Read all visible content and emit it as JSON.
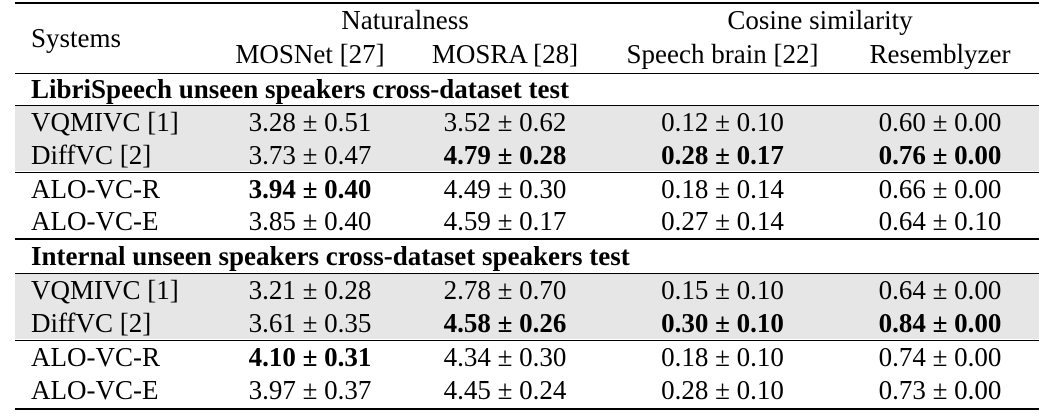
{
  "header": {
    "systems": "Systems",
    "group_naturalness": "Naturalness",
    "group_cosine": "Cosine similarity",
    "col_mosnet": "MOSNet [27]",
    "col_mosra": "MOSRA [28]",
    "col_speechbrain": "Speech brain [22]",
    "col_resemblyzer": "Resemblyzer"
  },
  "sections": [
    {
      "title": "LibriSpeech unseen speakers cross-dataset test",
      "rows": [
        {
          "system": "VQMIVC [1]",
          "values": [
            "3.28 ± 0.51",
            "3.52 ± 0.62",
            "0.12 ± 0.10",
            "0.60 ± 0.00"
          ],
          "bold": [
            false,
            false,
            false,
            false
          ],
          "shaded": true
        },
        {
          "system": "DiffVC [2]",
          "values": [
            "3.73 ± 0.47",
            "4.79 ± 0.28",
            "0.28 ± 0.17",
            "0.76 ± 0.00"
          ],
          "bold": [
            false,
            true,
            true,
            true
          ],
          "shaded": true
        },
        {
          "system": "ALO-VC-R",
          "values": [
            "3.94 ± 0.40",
            "4.49 ± 0.30",
            "0.18 ± 0.14",
            "0.66 ± 0.00"
          ],
          "bold": [
            true,
            false,
            false,
            false
          ],
          "shaded": false
        },
        {
          "system": "ALO-VC-E",
          "values": [
            "3.85 ± 0.40",
            "4.59 ± 0.17",
            "0.27 ± 0.14",
            "0.64 ± 0.10"
          ],
          "bold": [
            false,
            false,
            false,
            false
          ],
          "shaded": false
        }
      ]
    },
    {
      "title": "Internal unseen speakers cross-dataset speakers test",
      "rows": [
        {
          "system": "VQMIVC [1]",
          "values": [
            "3.21 ± 0.28",
            "2.78 ± 0.70",
            "0.15 ± 0.10",
            "0.64 ± 0.00"
          ],
          "bold": [
            false,
            false,
            false,
            false
          ],
          "shaded": true
        },
        {
          "system": "DiffVC [2]",
          "values": [
            "3.61 ± 0.35",
            "4.58 ± 0.26",
            "0.30 ± 0.10",
            "0.84 ± 0.00"
          ],
          "bold": [
            false,
            true,
            true,
            true
          ],
          "shaded": true
        },
        {
          "system": "ALO-VC-R",
          "values": [
            "4.10 ± 0.31",
            "4.34 ± 0.30",
            "0.18 ± 0.10",
            "0.74 ± 0.00"
          ],
          "bold": [
            true,
            false,
            false,
            false
          ],
          "shaded": false
        },
        {
          "system": "ALO-VC-E",
          "values": [
            "3.97 ± 0.37",
            "4.45 ± 0.24",
            "0.28 ± 0.10",
            "0.73 ± 0.00"
          ],
          "bold": [
            false,
            false,
            false,
            false
          ],
          "shaded": false
        }
      ]
    }
  ],
  "colors": {
    "shaded_row": "#e6e6e6"
  }
}
